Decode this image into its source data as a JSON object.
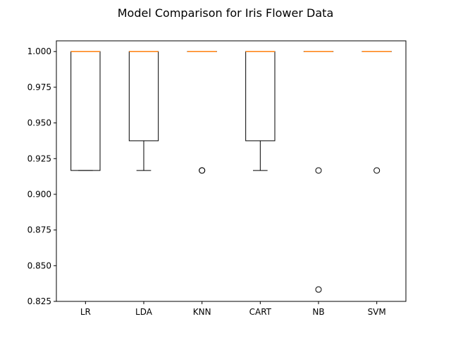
{
  "chart_data": {
    "type": "box",
    "title": "Model Comparison for Iris Flower Data",
    "xlabel": "",
    "ylabel": "",
    "ylim": [
      0.825,
      1.0075
    ],
    "yticks": [
      0.825,
      0.85,
      0.875,
      0.9,
      0.925,
      0.95,
      0.975,
      1.0
    ],
    "ytick_labels": [
      "0.825",
      "0.850",
      "0.875",
      "0.900",
      "0.925",
      "0.950",
      "0.975",
      "1.000"
    ],
    "grid": false,
    "categories": [
      "LR",
      "LDA",
      "KNN",
      "CART",
      "NB",
      "SVM"
    ],
    "boxes": [
      {
        "name": "LR",
        "whislo": 0.9167,
        "q1": 0.9167,
        "med": 1.0,
        "q3": 1.0,
        "whishi": 1.0,
        "fliers": []
      },
      {
        "name": "LDA",
        "whislo": 0.9167,
        "q1": 0.9375,
        "med": 1.0,
        "q3": 1.0,
        "whishi": 1.0,
        "fliers": []
      },
      {
        "name": "KNN",
        "whislo": 1.0,
        "q1": 1.0,
        "med": 1.0,
        "q3": 1.0,
        "whishi": 1.0,
        "fliers": [
          0.9167,
          0.9167
        ]
      },
      {
        "name": "CART",
        "whislo": 0.9167,
        "q1": 0.9375,
        "med": 1.0,
        "q3": 1.0,
        "whishi": 1.0,
        "fliers": []
      },
      {
        "name": "NB",
        "whislo": 1.0,
        "q1": 1.0,
        "med": 1.0,
        "q3": 1.0,
        "whishi": 1.0,
        "fliers": [
          0.9167,
          0.8333
        ]
      },
      {
        "name": "SVM",
        "whislo": 1.0,
        "q1": 1.0,
        "med": 1.0,
        "q3": 1.0,
        "whishi": 1.0,
        "fliers": [
          0.9167
        ]
      }
    ],
    "colors": {
      "box": "#000000",
      "median": "#ff7f0e",
      "flier": "#000000"
    }
  }
}
